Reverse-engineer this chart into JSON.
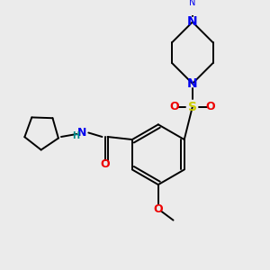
{
  "bg_color": "#ebebeb",
  "atom_colors": {
    "C": "#000000",
    "N": "#0000ee",
    "O": "#ee0000",
    "S": "#cccc00",
    "H": "#008888"
  },
  "bond_color": "#000000",
  "bond_width": 1.4
}
